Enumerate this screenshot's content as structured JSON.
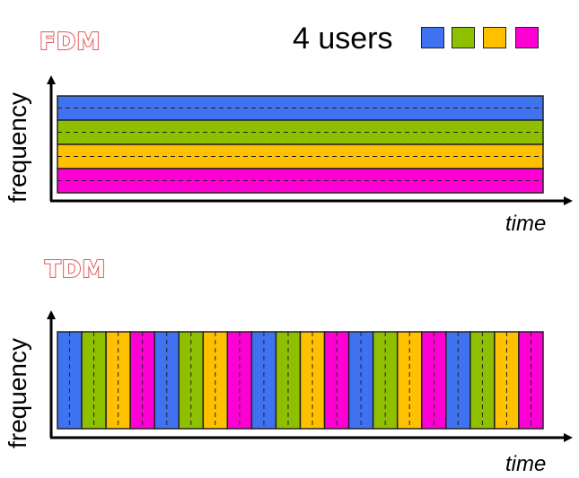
{
  "fdm": {
    "title": "FDM",
    "ylabel": "frequency",
    "xlabel": "time"
  },
  "tdm": {
    "title": "TDM",
    "ylabel": "frequency",
    "xlabel": "time"
  },
  "legend": {
    "label": "4 users",
    "colors": [
      "#3f72f0",
      "#8fc000",
      "#ffc000",
      "#ff00d4"
    ]
  },
  "tdm_slot_count": 20
}
